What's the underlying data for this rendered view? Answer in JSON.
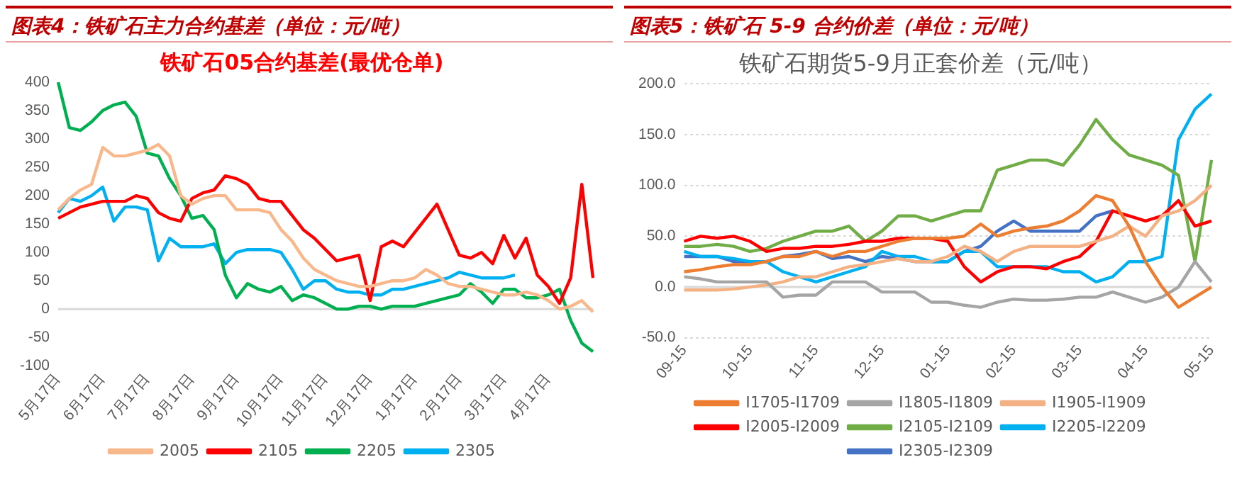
{
  "chart_data": [
    {
      "type": "line",
      "title": "图表4：铁矿石主力合约基差（单位：元/吨）",
      "subtitle": "铁矿石05合约基差(最优仓单)",
      "categories": [
        "5月17日",
        null,
        null,
        null,
        "6月17日",
        null,
        null,
        null,
        "7月17日",
        null,
        null,
        null,
        "8月17日",
        null,
        null,
        null,
        "9月17日",
        null,
        null,
        null,
        "10月17日",
        null,
        null,
        null,
        "11月17日",
        null,
        null,
        null,
        "12月17日",
        null,
        null,
        null,
        "1月17日",
        null,
        null,
        null,
        "2月17日",
        null,
        null,
        null,
        "3月17日",
        null,
        null,
        null,
        "4月17日",
        null,
        null,
        null,
        null
      ],
      "series": [
        {
          "name": "2005",
          "color": "#f8b88b",
          "values": [
            175,
            195,
            210,
            220,
            285,
            270,
            270,
            275,
            280,
            290,
            270,
            200,
            185,
            195,
            200,
            200,
            175,
            175,
            175,
            170,
            140,
            120,
            90,
            70,
            60,
            50,
            45,
            40,
            40,
            45,
            50,
            50,
            55,
            70,
            60,
            45,
            40,
            40,
            35,
            30,
            25,
            25,
            30,
            25,
            15,
            0,
            5,
            15,
            -5
          ]
        },
        {
          "name": "2105",
          "color": "#ff0000",
          "values": [
            160,
            170,
            180,
            185,
            190,
            190,
            190,
            200,
            195,
            170,
            160,
            155,
            195,
            205,
            210,
            235,
            230,
            220,
            195,
            190,
            190,
            165,
            140,
            125,
            105,
            85,
            90,
            95,
            15,
            110,
            120,
            110,
            135,
            160,
            185,
            140,
            95,
            90,
            100,
            80,
            130,
            90,
            125,
            60,
            40,
            10,
            55,
            220,
            55
          ]
        },
        {
          "name": "2205",
          "color": "#00b050",
          "values": [
            400,
            320,
            315,
            330,
            350,
            360,
            365,
            340,
            275,
            270,
            230,
            200,
            160,
            165,
            140,
            60,
            20,
            45,
            35,
            30,
            40,
            15,
            25,
            20,
            10,
            0,
            0,
            5,
            5,
            0,
            5,
            5,
            5,
            10,
            15,
            20,
            25,
            45,
            30,
            10,
            35,
            35,
            20,
            20,
            25,
            35,
            -20,
            -60,
            -75
          ]
        },
        {
          "name": "2305",
          "color": "#00b0f0",
          "values": [
            170,
            195,
            190,
            200,
            215,
            155,
            180,
            180,
            175,
            85,
            125,
            110,
            110,
            110,
            115,
            80,
            100,
            105,
            105,
            105,
            100,
            70,
            35,
            50,
            50,
            35,
            30,
            30,
            25,
            25,
            35,
            35,
            40,
            45,
            50,
            55,
            65,
            60,
            55,
            55,
            55,
            60,
            null,
            null,
            null,
            null,
            null,
            null,
            null
          ]
        }
      ],
      "ylim": [
        -100,
        400
      ],
      "yticks": [
        -100,
        -50,
        0,
        50,
        100,
        150,
        200,
        250,
        300,
        350,
        400
      ],
      "grid": false,
      "legend": "bottom",
      "marker": "none",
      "ref_lines": [
        {
          "axis": "y",
          "value": 0,
          "color": "#d9d9d9"
        }
      ]
    },
    {
      "type": "line",
      "title": "图表5：铁矿石 5-9 合约价差（单位：元/吨）",
      "subtitle": "铁矿石期货5-9月正套价差（元/吨）",
      "categories": [
        "09-15",
        null,
        null,
        null,
        "10-15",
        null,
        null,
        null,
        "11-15",
        null,
        null,
        null,
        "12-15",
        null,
        null,
        null,
        "01-15",
        null,
        null,
        null,
        "02-15",
        null,
        null,
        null,
        "03-15",
        null,
        null,
        null,
        "04-15",
        null,
        null,
        null,
        "05-15"
      ],
      "series": [
        {
          "name": "I1705-I1709",
          "color": "#ed7d31",
          "values": [
            15,
            17,
            20,
            22,
            22,
            25,
            30,
            30,
            35,
            30,
            35,
            35,
            40,
            45,
            48,
            48,
            48,
            50,
            62,
            50,
            55,
            58,
            60,
            65,
            75,
            90,
            85,
            60,
            25,
            0,
            -20,
            -10,
            0
          ]
        },
        {
          "name": "I1805-I1809",
          "color": "#a5a5a5",
          "values": [
            10,
            8,
            5,
            5,
            5,
            5,
            -10,
            -8,
            -8,
            5,
            5,
            5,
            -5,
            -5,
            -5,
            -15,
            -15,
            -18,
            -20,
            -15,
            -12,
            -13,
            -13,
            -12,
            -10,
            -10,
            -5,
            -10,
            -15,
            -10,
            0,
            25,
            5
          ]
        },
        {
          "name": "I1905-I1909",
          "color": "#f4b183",
          "values": [
            -3,
            -3,
            -3,
            -2,
            0,
            2,
            5,
            10,
            10,
            15,
            20,
            22,
            25,
            28,
            25,
            25,
            30,
            40,
            35,
            25,
            35,
            40,
            40,
            40,
            40,
            45,
            50,
            60,
            50,
            70,
            75,
            85,
            100
          ]
        },
        {
          "name": "I2005-I2009",
          "color": "#ff0000",
          "values": [
            45,
            50,
            48,
            50,
            45,
            35,
            38,
            38,
            40,
            40,
            42,
            45,
            45,
            48,
            48,
            48,
            45,
            20,
            5,
            15,
            20,
            20,
            18,
            25,
            30,
            45,
            75,
            70,
            65,
            70,
            85,
            60,
            65
          ]
        },
        {
          "name": "I2105-I2109",
          "color": "#70ad47",
          "values": [
            40,
            40,
            42,
            40,
            35,
            38,
            45,
            50,
            55,
            55,
            60,
            45,
            55,
            70,
            70,
            65,
            70,
            75,
            75,
            115,
            120,
            125,
            125,
            120,
            140,
            165,
            145,
            130,
            125,
            120,
            110,
            25,
            125
          ]
        },
        {
          "name": "I2205-I2209",
          "color": "#00b0f0",
          "values": [
            35,
            30,
            30,
            28,
            25,
            25,
            15,
            10,
            5,
            10,
            15,
            20,
            35,
            30,
            30,
            25,
            25,
            35,
            35,
            20,
            20,
            20,
            20,
            15,
            15,
            5,
            10,
            25,
            25,
            30,
            145,
            175,
            190
          ]
        },
        {
          "name": "I2305-I2309",
          "color": "#4472c4",
          "values": [
            30,
            30,
            30,
            25,
            25,
            25,
            30,
            32,
            35,
            28,
            30,
            25,
            30,
            28,
            25,
            25,
            25,
            35,
            40,
            55,
            65,
            55,
            55,
            55,
            55,
            70,
            75,
            null,
            null,
            null,
            null,
            null,
            null
          ]
        }
      ],
      "ylim": [
        -50,
        200
      ],
      "yticks": [
        {
          "value": -50,
          "label": "-50.0"
        },
        {
          "value": 0,
          "label": "0.0"
        },
        {
          "value": 50,
          "label": "50.0"
        },
        {
          "value": 100,
          "label": "100.0"
        },
        {
          "value": 150,
          "label": "150.0"
        },
        {
          "value": 200,
          "label": "200.0"
        }
      ],
      "grid": "y",
      "legend": "bottom",
      "marker": "none",
      "ref_lines": [
        {
          "axis": "y",
          "value": 0,
          "color": "#d9d9d9"
        }
      ]
    }
  ]
}
